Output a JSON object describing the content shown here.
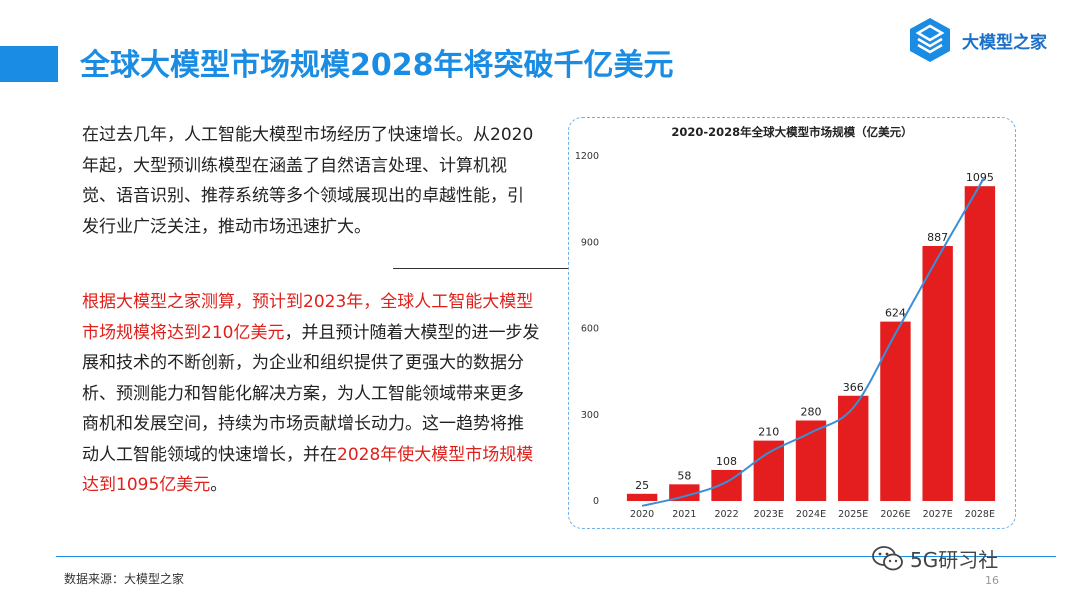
{
  "header": {
    "title": "全球大模型市场规模2028年将突破千亿美元",
    "brand": "大模型之家",
    "brand_color": "#1a8ce3",
    "logo_icon": "layered-hexagon-logo"
  },
  "body": {
    "para1": "在过去几年，人工智能大模型市场经历了快速增长。从2020年起，大型预训练模型在涵盖了自然语言处理、计算机视觉、语音识别、推荐系统等多个领域展现出的卓越性能，引发行业广泛关注，推动市场迅速扩大。",
    "para2_red1": "根据大模型之家测算，预计到2023年，全球人工智能大模型市场规模将达到210亿美元",
    "para2_mid": "，并且预计随着大模型的进一步发展和技术的不断创新，为企业和组织提供了更强大的数据分析、预测能力和智能化解决方案，为人工智能领域带来更多商机和发展空间，持续为市场贡献增长动力。这一趋势将推动人工智能领域的快速增长，并在",
    "para2_red2": "2028年使大模型市场规模达到1095亿美元",
    "para2_end": "。",
    "accent_color": "#e0201b"
  },
  "chart_data": {
    "type": "bar",
    "title": "2020-2028年全球大模型市场规模（亿美元）",
    "categories": [
      "2020",
      "2021",
      "2022",
      "2023E",
      "2024E",
      "2025E",
      "2026E",
      "2027E",
      "2028E"
    ],
    "values": [
      25,
      58,
      108,
      210,
      280,
      366,
      624,
      887,
      1095
    ],
    "ylim": [
      0,
      1200
    ],
    "yticks": [
      0,
      300,
      600,
      900,
      1200
    ],
    "bar_color": "#e41e1e",
    "trend_line_color": "#3a8fd6",
    "grid": false,
    "xlabel": "",
    "ylabel": ""
  },
  "footer": {
    "source": "数据来源：大模型之家",
    "page": "16",
    "watermark": "5G研习社",
    "watermark_icon": "wechat-icon"
  }
}
